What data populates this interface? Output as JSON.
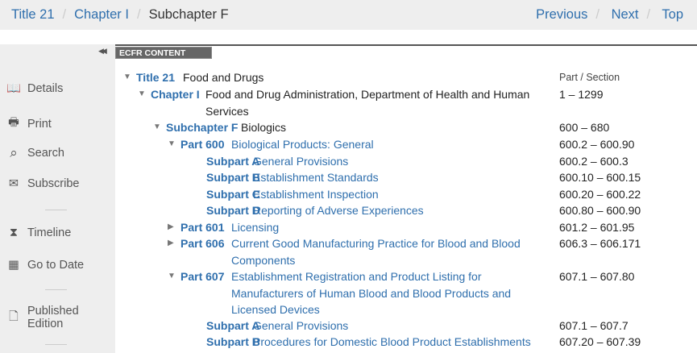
{
  "breadcrumb": {
    "items": [
      "Title 21",
      "Chapter I"
    ],
    "current": "Subchapter F"
  },
  "nav": [
    "Previous",
    "Next",
    "Top"
  ],
  "sidebar": {
    "items": [
      {
        "label": "Details",
        "icon": "book-icon"
      },
      {
        "label": "Print",
        "icon": "printer-icon"
      },
      {
        "label": "Search",
        "icon": "search-icon"
      },
      {
        "label": "Subscribe",
        "icon": "envelope-icon"
      },
      {
        "label": "Timeline",
        "icon": "hourglass-icon"
      },
      {
        "label": "Go to Date",
        "icon": "calendar-icon"
      },
      {
        "label": "Published Edition",
        "icon": "document-icon"
      }
    ]
  },
  "content": {
    "tab": "ECFR CONTENT",
    "range_header": "Part / Section",
    "rows": [
      {
        "label": "Title 21",
        "desc": "Food and Drugs",
        "range": "",
        "toggle": "expanded"
      },
      {
        "label": "Chapter I",
        "desc": "Food and Drug Administration, Department of Health and Human Services",
        "range": "1 – 1299",
        "toggle": "expanded"
      },
      {
        "label": "Subchapter F",
        "desc": "Biologics",
        "range": "600 – 680",
        "toggle": "expanded"
      },
      {
        "label": "Part 600",
        "desc": "Biological Products: General",
        "range": "600.2 – 600.90",
        "toggle": "expanded"
      },
      {
        "label": "Subpart A",
        "desc": "General Provisions",
        "range": "600.2 – 600.3"
      },
      {
        "label": "Subpart B",
        "desc": "Establishment Standards",
        "range": "600.10 – 600.15"
      },
      {
        "label": "Subpart C",
        "desc": "Establishment Inspection",
        "range": "600.20 – 600.22"
      },
      {
        "label": "Subpart D",
        "desc": "Reporting of Adverse Experiences",
        "range": "600.80 – 600.90"
      },
      {
        "label": "Part 601",
        "desc": "Licensing",
        "range": "601.2 – 601.95",
        "toggle": "collapsed"
      },
      {
        "label": "Part 606",
        "desc": "Current Good Manufacturing Practice for Blood and Blood Components",
        "range": "606.3 – 606.171",
        "toggle": "collapsed"
      },
      {
        "label": "Part 607",
        "desc": "Establishment Registration and Product Listing for Manufacturers of Human Blood and Blood Products and Licensed Devices",
        "range": "607.1 – 607.80",
        "toggle": "expanded"
      },
      {
        "label": "Subpart A",
        "desc": "General Provisions",
        "range": "607.1 – 607.7"
      },
      {
        "label": "Subpart B",
        "desc": "Procedures for Domestic Blood Product Establishments",
        "range": "607.20 – 607.39"
      }
    ]
  }
}
